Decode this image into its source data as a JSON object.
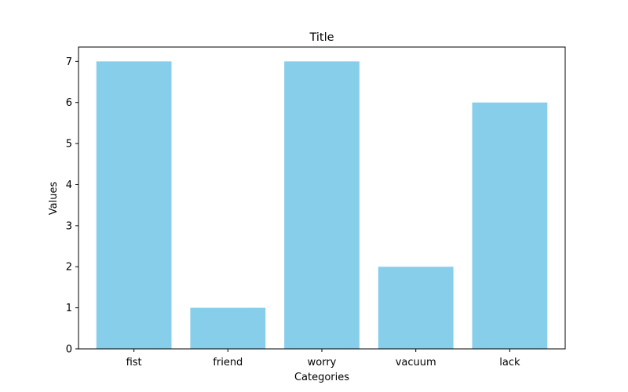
{
  "chart_data": {
    "type": "bar",
    "title": "Title",
    "xlabel": "Categories",
    "ylabel": "Values",
    "categories": [
      "fist",
      "friend",
      "worry",
      "vacuum",
      "lack"
    ],
    "values": [
      7,
      1,
      7,
      2,
      6
    ],
    "ylim": [
      0,
      7.35
    ],
    "yticks": [
      "0",
      "1",
      "2",
      "3",
      "4",
      "5",
      "6",
      "7"
    ],
    "bar_color": "#87CEEB",
    "grid": false,
    "legend": "none"
  }
}
